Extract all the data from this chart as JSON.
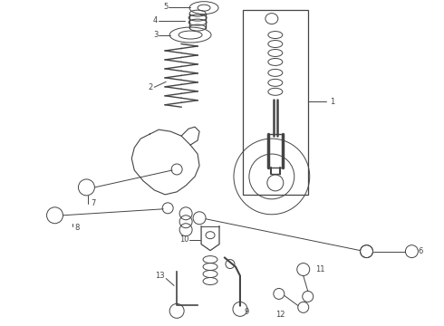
{
  "bg_color": "#ffffff",
  "lc": "#444444",
  "fig_width": 4.9,
  "fig_height": 3.6,
  "dpi": 100,
  "fs": 6.0
}
